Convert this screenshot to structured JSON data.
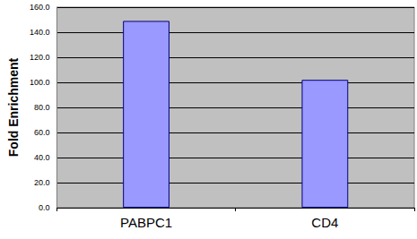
{
  "chart_data": {
    "type": "bar",
    "y_label": "Fold Enrichment",
    "categories": [
      "PABPC1",
      "CD4"
    ],
    "values": [
      149,
      102
    ],
    "color": "#9999ff",
    "ylim": [
      0,
      160
    ],
    "yticks": [
      {
        "value": 0,
        "label": "0.0"
      },
      {
        "value": 20,
        "label": "20.0"
      },
      {
        "value": 40,
        "label": "40.0"
      },
      {
        "value": 60,
        "label": "60.0"
      },
      {
        "value": 80,
        "label": "80.0"
      },
      {
        "value": 100,
        "label": "100.0"
      },
      {
        "value": 120,
        "label": "120.0"
      },
      {
        "value": 140,
        "label": "140.0"
      },
      {
        "value": 160,
        "label": "160.0"
      }
    ],
    "grid": true
  }
}
